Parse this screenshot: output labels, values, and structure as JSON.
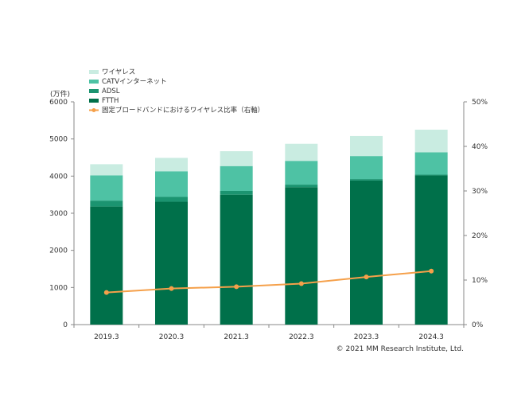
{
  "chart_data": {
    "type": "bar",
    "stacked": true,
    "categories": [
      "2019.3",
      "2020.3",
      "2021.3",
      "2022.3",
      "2023.3",
      "2024.3"
    ],
    "series": [
      {
        "name": "FTTH",
        "color": "#00704a",
        "values": [
          3180,
          3310,
          3500,
          3700,
          3880,
          4020
        ]
      },
      {
        "name": "ADSL",
        "color": "#1b9470",
        "values": [
          160,
          130,
          100,
          70,
          40,
          20
        ]
      },
      {
        "name": "CATVインターネット",
        "color": "#4ec2a4",
        "values": [
          680,
          690,
          670,
          640,
          620,
          600
        ]
      },
      {
        "name": "ワイヤレス",
        "color": "#c9ece1",
        "values": [
          300,
          360,
          400,
          460,
          540,
          610
        ]
      }
    ],
    "line_series": {
      "name": "固定ブロードバンドにおけるワイヤレス比率（右軸）",
      "color": "#f5a04a",
      "axis": "right",
      "values": [
        7.2,
        8.1,
        8.5,
        9.2,
        10.7,
        12.0
      ]
    },
    "left_axis": {
      "unit_label": "(万件)",
      "ylim": [
        0,
        6000
      ],
      "ticks": [
        "0",
        "1000",
        "2000",
        "3000",
        "4000",
        "5000",
        "6000"
      ]
    },
    "right_axis": {
      "ylim": [
        0,
        50
      ],
      "ticks": [
        "0%",
        "10%",
        "20%",
        "30%",
        "40%",
        "50%"
      ]
    },
    "grid": false,
    "legend_placement": "top-left",
    "credit": "© 2021 MM Research Institute, Ltd."
  }
}
